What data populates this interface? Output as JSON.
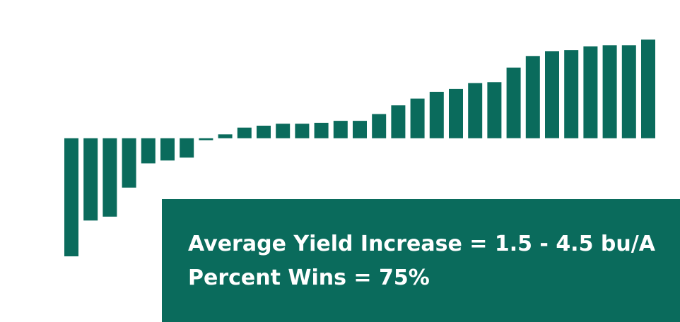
{
  "colors": {
    "bar": "#0a6b5c",
    "annotation_bg": "#0a6b5c",
    "annotation_text": "#ffffff"
  },
  "chart_data": {
    "type": "bar",
    "title": "",
    "xlabel": "",
    "ylabel": "",
    "grid": false,
    "legend": "none",
    "ylim": [
      -6.1,
      5.1
    ],
    "values": [
      -6.1,
      -4.25,
      -4.05,
      -2.55,
      -1.3,
      -1.15,
      -1.0,
      -0.1,
      0.2,
      0.55,
      0.65,
      0.75,
      0.75,
      0.8,
      0.9,
      0.9,
      1.25,
      1.7,
      2.05,
      2.4,
      2.55,
      2.85,
      2.9,
      3.65,
      4.25,
      4.5,
      4.55,
      4.75,
      4.8,
      4.8,
      5.1
    ]
  },
  "annotation": {
    "line1": "Average Yield Increase = 1.5 - 4.5 bu/A",
    "line2": "Percent Wins = 75%"
  }
}
